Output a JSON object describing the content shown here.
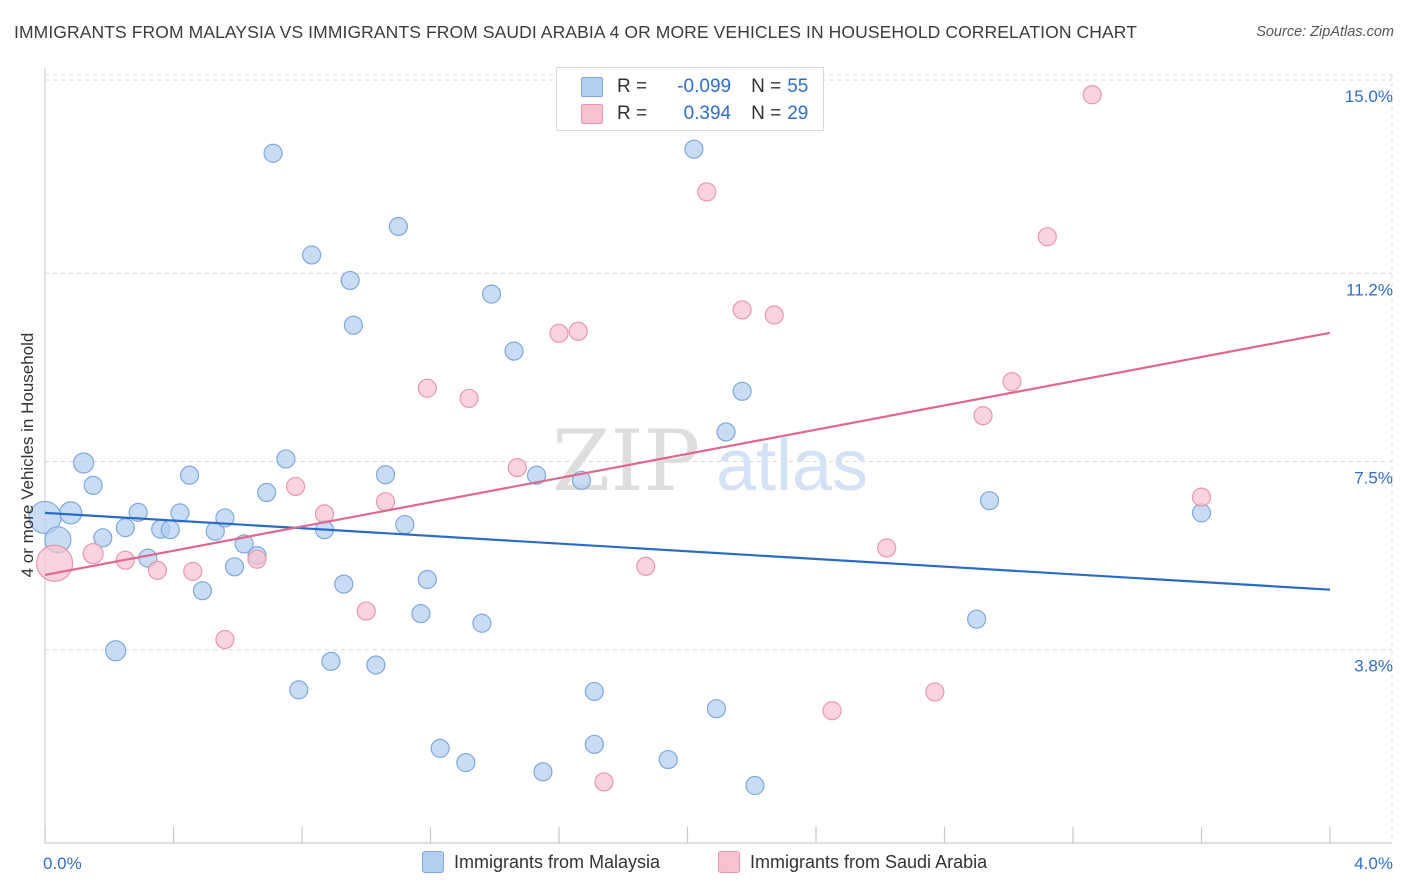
{
  "header": {
    "title": "IMMIGRANTS FROM MALAYSIA VS IMMIGRANTS FROM SAUDI ARABIA 4 OR MORE VEHICLES IN HOUSEHOLD CORRELATION CHART",
    "source": "Source: ZipAtlas.com"
  },
  "colors": {
    "malaysia_fill": "#b3cff0",
    "malaysia_stroke": "#7fa8dc",
    "malaysia_line": "#2a6cc4",
    "saudi_fill": "#f7c2d0",
    "saudi_stroke": "#e897b0",
    "saudi_line": "#e06890",
    "tick_label": "#2f6ec6",
    "grid": "#d8d8d8"
  },
  "legend": {
    "rows": [
      {
        "r_label": "R =",
        "r_value": "-0.099",
        "n_label": "N =",
        "n_value": "55"
      },
      {
        "r_label": "R =",
        "r_value": "0.394",
        "n_label": "N =",
        "n_value": "29"
      }
    ]
  },
  "bottom_legend": {
    "items": [
      "Immigrants from Malaysia",
      "Immigrants from Saudi Arabia"
    ]
  },
  "watermark": {
    "zip": "ZIP",
    "atlas": "atlas"
  },
  "chart_data": {
    "type": "scatter",
    "title": "IMMIGRANTS FROM MALAYSIA VS IMMIGRANTS FROM SAUDI ARABIA 4 OR MORE VEHICLES IN HOUSEHOLD CORRELATION CHART",
    "xlabel": "",
    "ylabel": "4 or more Vehicles in Household",
    "xlim": [
      0.0,
      4.0
    ],
    "ylim": [
      0.0,
      15.0
    ],
    "x_tick_labels": [
      "0.0%",
      "4.0%"
    ],
    "y_ticks": [
      3.8,
      7.5,
      11.2,
      15.0
    ],
    "y_tick_labels": [
      "3.8%",
      "7.5%",
      "11.2%",
      "15.0%"
    ],
    "grid": true,
    "series": [
      {
        "name": "Immigrants from Malaysia",
        "r": -0.099,
        "n": 55,
        "trend": [
          [
            0.0,
            6.49
          ],
          [
            4.0,
            4.98
          ]
        ],
        "points": [
          [
            0.0,
            6.4,
            16
          ],
          [
            0.04,
            5.96,
            13
          ],
          [
            0.08,
            6.49,
            11
          ],
          [
            0.12,
            7.47,
            10
          ],
          [
            0.22,
            3.78,
            10
          ],
          [
            0.15,
            7.03,
            9
          ],
          [
            0.18,
            6.0,
            9
          ],
          [
            0.25,
            6.2,
            9
          ],
          [
            0.29,
            6.5,
            9
          ],
          [
            0.32,
            5.6,
            9
          ],
          [
            0.36,
            6.17,
            9
          ],
          [
            0.39,
            6.16,
            9
          ],
          [
            0.42,
            6.49,
            9
          ],
          [
            0.45,
            7.23,
            9
          ],
          [
            0.49,
            4.96,
            9
          ],
          [
            0.53,
            6.13,
            9
          ],
          [
            0.56,
            6.39,
            9
          ],
          [
            0.59,
            5.43,
            9
          ],
          [
            0.62,
            5.88,
            9
          ],
          [
            0.66,
            5.65,
            9
          ],
          [
            0.69,
            6.89,
            9
          ],
          [
            0.71,
            13.56,
            9
          ],
          [
            0.75,
            7.55,
            9
          ],
          [
            0.79,
            3.01,
            9
          ],
          [
            0.83,
            11.56,
            9
          ],
          [
            0.87,
            6.16,
            9
          ],
          [
            0.89,
            3.57,
            9
          ],
          [
            0.93,
            5.09,
            9
          ],
          [
            0.95,
            11.06,
            9
          ],
          [
            0.96,
            10.18,
            9
          ],
          [
            1.03,
            3.5,
            9
          ],
          [
            1.06,
            7.24,
            9
          ],
          [
            1.1,
            12.12,
            9
          ],
          [
            1.12,
            6.26,
            9
          ],
          [
            1.17,
            4.51,
            9
          ],
          [
            1.19,
            5.18,
            9
          ],
          [
            1.23,
            1.86,
            9
          ],
          [
            1.31,
            1.58,
            9
          ],
          [
            1.36,
            4.32,
            9
          ],
          [
            1.39,
            10.79,
            9
          ],
          [
            1.46,
            9.67,
            9
          ],
          [
            1.53,
            7.23,
            9
          ],
          [
            1.55,
            1.4,
            9
          ],
          [
            1.67,
            7.13,
            9
          ],
          [
            1.71,
            2.98,
            9
          ],
          [
            1.71,
            1.94,
            9
          ],
          [
            1.94,
            1.64,
            9
          ],
          [
            2.02,
            13.64,
            9
          ],
          [
            2.09,
            2.64,
            9
          ],
          [
            2.12,
            8.08,
            9
          ],
          [
            2.17,
            8.88,
            9
          ],
          [
            2.21,
            1.13,
            9
          ],
          [
            2.9,
            4.4,
            9
          ],
          [
            2.94,
            6.73,
            9
          ],
          [
            3.6,
            6.49,
            9
          ]
        ]
      },
      {
        "name": "Immigrants from Saudi Arabia",
        "r": 0.394,
        "n": 29,
        "trend": [
          [
            0.0,
            5.27
          ],
          [
            4.0,
            10.03
          ]
        ],
        "points": [
          [
            0.03,
            5.5,
            18
          ],
          [
            0.15,
            5.69,
            10
          ],
          [
            0.25,
            5.56,
            9
          ],
          [
            0.35,
            5.36,
            9
          ],
          [
            0.46,
            5.34,
            9
          ],
          [
            0.56,
            4.0,
            9
          ],
          [
            0.66,
            5.58,
            9
          ],
          [
            0.78,
            7.01,
            9
          ],
          [
            0.87,
            6.47,
            9
          ],
          [
            1.0,
            4.56,
            9
          ],
          [
            1.06,
            6.71,
            9
          ],
          [
            1.19,
            8.94,
            9
          ],
          [
            1.32,
            8.74,
            9
          ],
          [
            1.47,
            7.38,
            9
          ],
          [
            1.6,
            10.02,
            9
          ],
          [
            1.66,
            10.06,
            9
          ],
          [
            1.74,
            1.2,
            9
          ],
          [
            1.87,
            5.44,
            9
          ],
          [
            2.06,
            12.8,
            9
          ],
          [
            2.17,
            10.48,
            9
          ],
          [
            2.27,
            10.38,
            9
          ],
          [
            2.45,
            2.6,
            9
          ],
          [
            2.62,
            5.8,
            9
          ],
          [
            2.77,
            2.97,
            9
          ],
          [
            2.92,
            8.4,
            9
          ],
          [
            3.01,
            9.07,
            9
          ],
          [
            3.12,
            11.92,
            9
          ],
          [
            3.26,
            14.71,
            9
          ],
          [
            3.6,
            6.8,
            9
          ]
        ]
      }
    ]
  }
}
